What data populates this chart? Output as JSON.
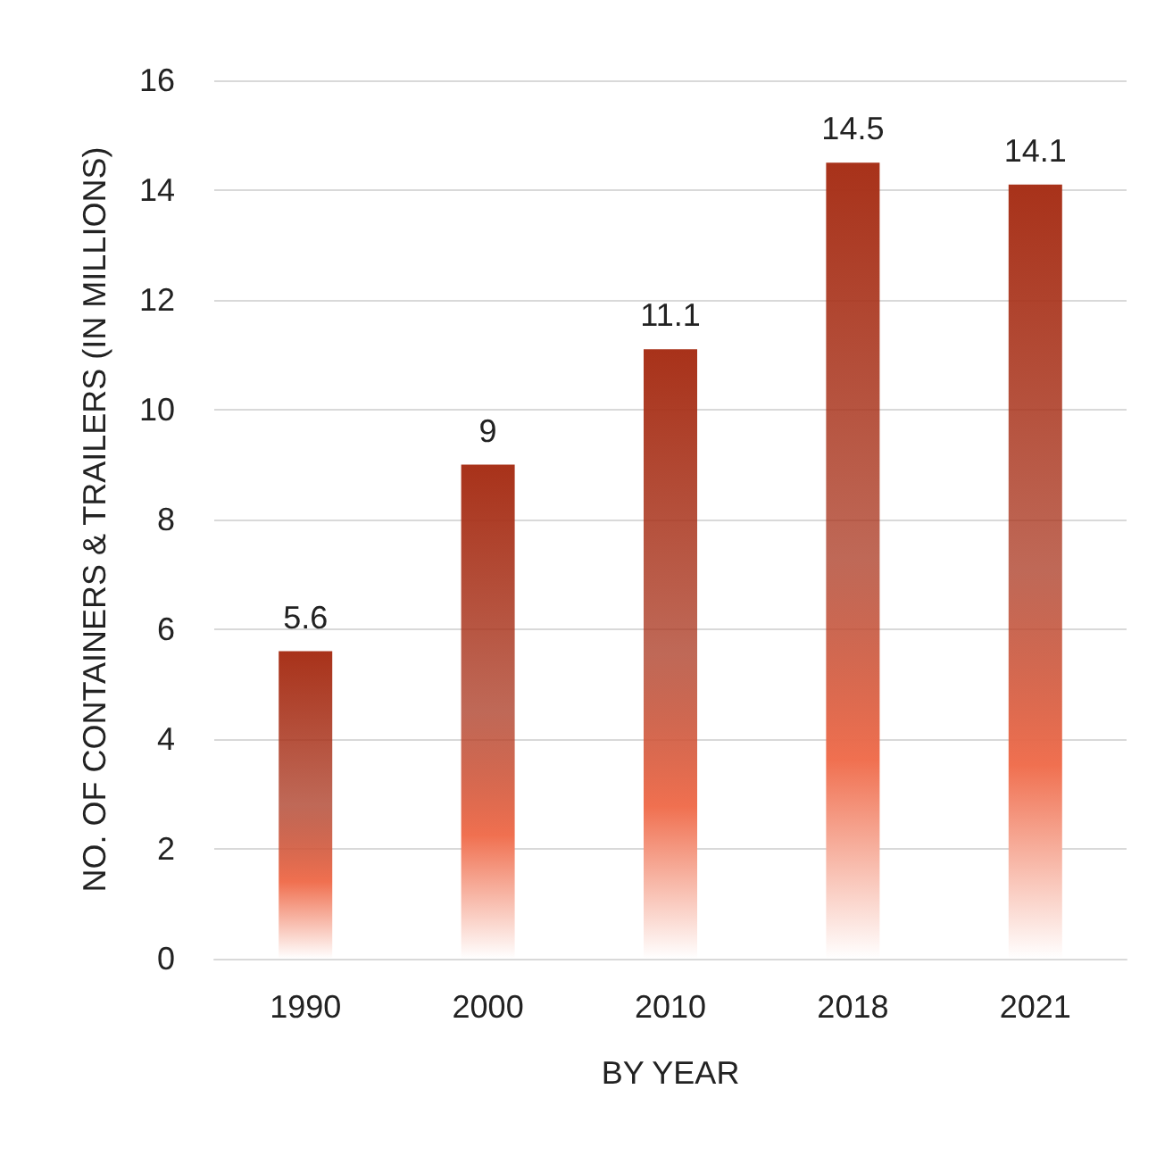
{
  "chart_data": {
    "type": "bar",
    "xlabel": "BY YEAR",
    "ylabel": "NO. OF CONTAINERS & TRAILERS (IN MILLIONS)",
    "categories": [
      "1990",
      "2000",
      "2010",
      "2018",
      "2021"
    ],
    "values": [
      5.6,
      9,
      11.1,
      14.5,
      14.1
    ],
    "color": "#a8321a",
    "ylim": [
      0,
      16
    ],
    "yticks": [
      0,
      2,
      4,
      6,
      8,
      10,
      12,
      14,
      16
    ],
    "grid": "y",
    "data_labels": true
  }
}
